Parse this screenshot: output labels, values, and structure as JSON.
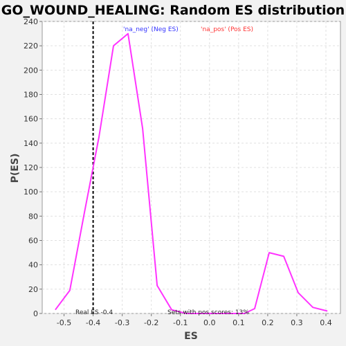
{
  "chart_data": {
    "type": "line",
    "title": "GO_WOUND_HEALING: Random ES distribution",
    "xlabel": "ES",
    "ylabel": "P(ES)",
    "xlim": [
      -0.575,
      0.45
    ],
    "ylim": [
      0,
      240
    ],
    "xticks": [
      -0.5,
      -0.4,
      -0.3,
      -0.2,
      -0.1,
      0.0,
      0.1,
      0.2,
      0.3,
      0.4
    ],
    "xtick_labels": [
      "-0.5",
      "-0.4",
      "-0.3",
      "-0.2",
      "-0.1",
      "0.0",
      "0.1",
      "0.2",
      "0.3",
      "0.4"
    ],
    "yticks": [
      0,
      20,
      40,
      60,
      80,
      100,
      120,
      140,
      160,
      180,
      200,
      220,
      240
    ],
    "grid": true,
    "series": [
      {
        "color": "#ff33ff",
        "x": [
          -0.53,
          -0.48,
          -0.43,
          -0.38,
          -0.33,
          -0.28,
          -0.23,
          -0.18,
          -0.13,
          -0.08,
          -0.03,
          0.02,
          0.07,
          0.12,
          0.155,
          0.205,
          0.255,
          0.305,
          0.355,
          0.405
        ],
        "y": [
          3,
          19,
          83,
          145,
          220,
          230,
          152,
          23,
          3,
          0,
          0,
          0,
          0,
          0,
          4,
          50,
          47,
          17,
          5,
          2
        ]
      }
    ],
    "real_es": {
      "x": -0.4,
      "label": "Real ES -0.4"
    },
    "legend": [
      {
        "text": "'na_neg' (Neg ES)",
        "color": "#3333ff"
      },
      {
        "text": "'na_pos' (Pos ES)",
        "color": "#ff3333"
      }
    ],
    "annotation": "Sets with pos scores: 13%"
  }
}
